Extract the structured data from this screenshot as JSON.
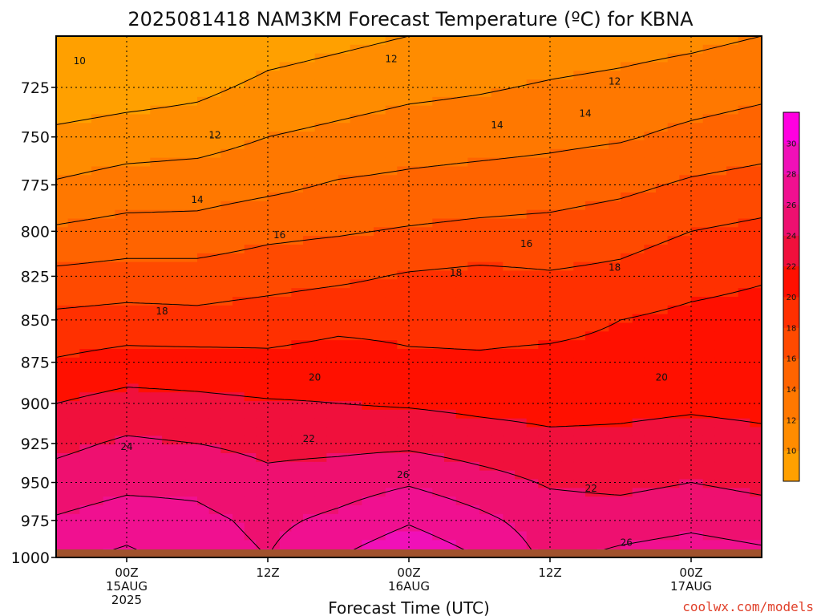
{
  "title": "2025081418 NAM3KM Forecast Temperature (ºC) for KBNA",
  "x_axis_title": "Forecast Time (UTC)",
  "credit": "coolwx.com/models",
  "colors": {
    "ground": "#a0522d",
    "credit": "#e0402a",
    "grid": "#000000"
  },
  "chart_data": {
    "type": "heatmap",
    "x_ticks": [
      {
        "t": 6,
        "lines": [
          "00Z",
          "15AUG",
          "2025"
        ]
      },
      {
        "t": 18,
        "lines": [
          "12Z"
        ]
      },
      {
        "t": 30,
        "lines": [
          "00Z",
          "16AUG"
        ]
      },
      {
        "t": 42,
        "lines": [
          "12Z"
        ]
      },
      {
        "t": 54,
        "lines": [
          "00Z",
          "17AUG"
        ]
      }
    ],
    "x_range_hours": [
      0,
      60
    ],
    "y_ticks": [
      725,
      750,
      775,
      800,
      825,
      850,
      875,
      900,
      925,
      950,
      975,
      1000
    ],
    "y_range_hpa": [
      700,
      1000
    ],
    "y_scale": "log-pressure",
    "grid": true,
    "colorbar": {
      "levels": [
        8,
        10,
        12,
        14,
        16,
        18,
        20,
        22,
        24,
        26,
        28,
        30,
        32
      ],
      "tick_labels": [
        "10",
        "12",
        "14",
        "16",
        "18",
        "20",
        "22",
        "24",
        "26",
        "28",
        "30"
      ],
      "colors": [
        "#ffa000",
        "#ff8c00",
        "#ff7800",
        "#ff6400",
        "#ff4a00",
        "#ff3000",
        "#ff1000",
        "#f0103c",
        "#ee1070",
        "#f01090",
        "#f010b8",
        "#ff00e0"
      ]
    },
    "temperature_profiles": [
      {
        "t": 0,
        "temps": [
          8.5,
          10.5,
          12.2,
          14.3,
          16.5,
          18.5,
          20.2,
          22.0,
          23.5,
          24.8,
          26.2,
          27.5
        ]
      },
      {
        "t": 6,
        "temps": [
          9.0,
          11.0,
          12.8,
          14.8,
          16.8,
          18.8,
          20.8,
          22.8,
          24.3,
          25.5,
          27.0,
          28.5
        ]
      },
      {
        "t": 12,
        "temps": [
          9.5,
          11.2,
          13.0,
          14.8,
          16.8,
          18.6,
          20.8,
          22.5,
          24.0,
          25.5,
          26.5,
          27.0
        ]
      },
      {
        "t": 18,
        "temps": [
          10.5,
          12.0,
          13.5,
          15.5,
          17.2,
          19.0,
          20.5,
          22.2,
          23.5,
          24.5,
          25.5,
          26.0
        ]
      },
      {
        "t": 24,
        "temps": [
          11.0,
          12.5,
          14.2,
          15.8,
          17.6,
          19.5,
          20.8,
          22.0,
          23.5,
          25.0,
          26.5,
          28.0
        ]
      },
      {
        "t": 30,
        "temps": [
          11.5,
          13.0,
          14.5,
          16.2,
          18.2,
          19.5,
          20.3,
          21.8,
          23.6,
          25.8,
          27.8,
          29.5
        ]
      },
      {
        "t": 36,
        "temps": [
          11.8,
          13.2,
          14.8,
          16.5,
          18.5,
          19.5,
          20.2,
          21.5,
          23.0,
          24.8,
          26.5,
          28.0
        ]
      },
      {
        "t": 42,
        "temps": [
          12.2,
          13.5,
          15.0,
          16.7,
          18.2,
          19.5,
          20.4,
          21.3,
          22.5,
          23.8,
          25.0,
          25.5
        ]
      },
      {
        "t": 48,
        "temps": [
          12.5,
          13.8,
          15.5,
          17.2,
          18.5,
          20.0,
          20.5,
          21.5,
          22.5,
          23.5,
          25.0,
          26.5
        ]
      },
      {
        "t": 54,
        "temps": [
          13.0,
          14.5,
          16.3,
          18.0,
          19.3,
          20.5,
          20.8,
          21.7,
          22.8,
          24.0,
          25.5,
          27.0
        ]
      },
      {
        "t": 60,
        "temps": [
          13.5,
          15.0,
          16.8,
          18.5,
          19.8,
          20.8,
          21.0,
          21.5,
          22.5,
          23.5,
          25.0,
          26.5
        ]
      }
    ],
    "contour_labels": [
      {
        "value": "10",
        "t": 2.0,
        "p": 712
      },
      {
        "value": "12",
        "t": 28.5,
        "p": 711
      },
      {
        "value": "12",
        "t": 47.5,
        "p": 722
      },
      {
        "value": "12",
        "t": 13.5,
        "p": 749
      },
      {
        "value": "14",
        "t": 37.5,
        "p": 744
      },
      {
        "value": "14",
        "t": 45.0,
        "p": 738
      },
      {
        "value": "14",
        "t": 12.0,
        "p": 783
      },
      {
        "value": "16",
        "t": 19.0,
        "p": 802
      },
      {
        "value": "16",
        "t": 40.0,
        "p": 807
      },
      {
        "value": "18",
        "t": 34.0,
        "p": 823
      },
      {
        "value": "18",
        "t": 47.5,
        "p": 820
      },
      {
        "value": "18",
        "t": 9.0,
        "p": 845
      },
      {
        "value": "20",
        "t": 22.0,
        "p": 884
      },
      {
        "value": "20",
        "t": 51.5,
        "p": 884
      },
      {
        "value": "22",
        "t": 21.5,
        "p": 922
      },
      {
        "value": "22",
        "t": 45.5,
        "p": 954
      },
      {
        "value": "24",
        "t": 6.0,
        "p": 927
      },
      {
        "value": "26",
        "t": 29.5,
        "p": 945
      },
      {
        "value": "26",
        "t": 48.5,
        "p": 990
      }
    ]
  }
}
